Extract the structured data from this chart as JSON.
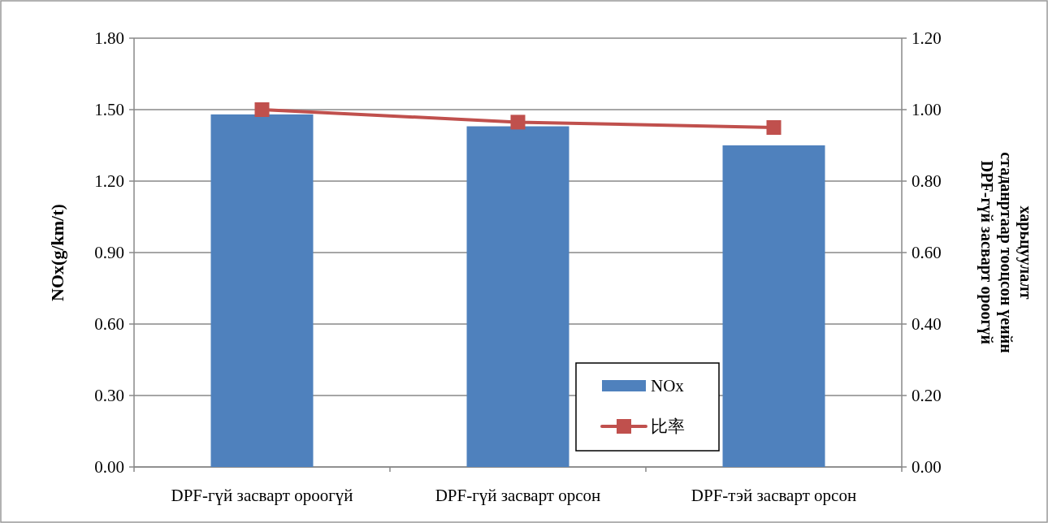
{
  "chart_data": {
    "type": "bar",
    "categories": [
      "DPF-гүй засварт ороогүй",
      "DPF-гүй засварт орсон",
      "DPF-тэй засварт орсон"
    ],
    "series": [
      {
        "name": "NOx",
        "color": "#4f81bd",
        "values": [
          1.48,
          1.43,
          1.35
        ]
      },
      {
        "name": "比率",
        "type": "line",
        "axis": "y2",
        "color": "#c0504d",
        "marker": "square",
        "values": [
          1.0,
          0.965,
          0.95
        ]
      }
    ],
    "ylabel": "NOx(g/km/t)",
    "y2label": "DPF-гүй засварт ороогүй стаданртаар тооцсон үеийн харьцуулалт",
    "ylim": [
      0,
      1.8
    ],
    "yticks": [
      {
        "value": 0,
        "label": "0.00"
      },
      {
        "value": 0.3,
        "label": "0.30"
      },
      {
        "value": 0.6,
        "label": "0.60"
      },
      {
        "value": 0.9,
        "label": "0.90"
      },
      {
        "value": 1.2,
        "label": "1.20"
      },
      {
        "value": 1.5,
        "label": "1.50"
      },
      {
        "value": 1.8,
        "label": "1.80"
      }
    ],
    "y2lim": [
      0,
      1.2
    ],
    "y2ticks": [
      {
        "value": 0,
        "label": "0.00"
      },
      {
        "value": 0.2,
        "label": "0.20"
      },
      {
        "value": 0.4,
        "label": "0.40"
      },
      {
        "value": 0.6,
        "label": "0.60"
      },
      {
        "value": 0.8,
        "label": "0.80"
      },
      {
        "value": 1.0,
        "label": "1.00"
      },
      {
        "value": 1.2,
        "label": "1.20"
      }
    ],
    "grid": "y",
    "legend": "bottom right"
  }
}
